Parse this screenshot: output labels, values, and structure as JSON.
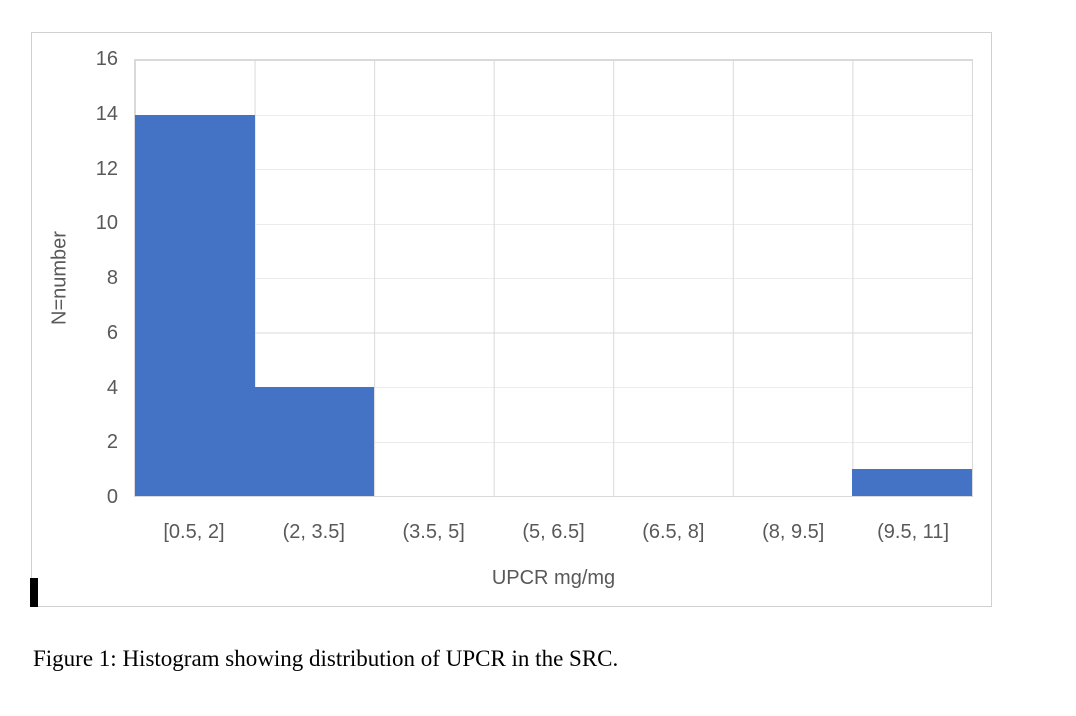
{
  "figure": {
    "caption": "Figure 1: Histogram showing distribution of UPCR in the SRC."
  },
  "chart_data": {
    "type": "bar",
    "subtype": "histogram",
    "categories": [
      "[0.5, 2]",
      "(2, 3.5]",
      "(3.5, 5]",
      "(5, 6.5]",
      "(6.5, 8]",
      "(8, 9.5]",
      "(9.5, 11]"
    ],
    "values": [
      14,
      4,
      0,
      0,
      0,
      0,
      1
    ],
    "title": "",
    "xlabel": "UPCR mg/mg",
    "ylabel": "N=number",
    "ylim": [
      0,
      16
    ],
    "y_ticks": [
      0,
      2,
      4,
      6,
      8,
      10,
      12,
      14,
      16
    ],
    "grid": true,
    "gap_width": 0,
    "legend": "none",
    "colors": {
      "bar": "#4472C4",
      "gridline": "#D9D9D9",
      "axis_text": "#595959"
    }
  }
}
